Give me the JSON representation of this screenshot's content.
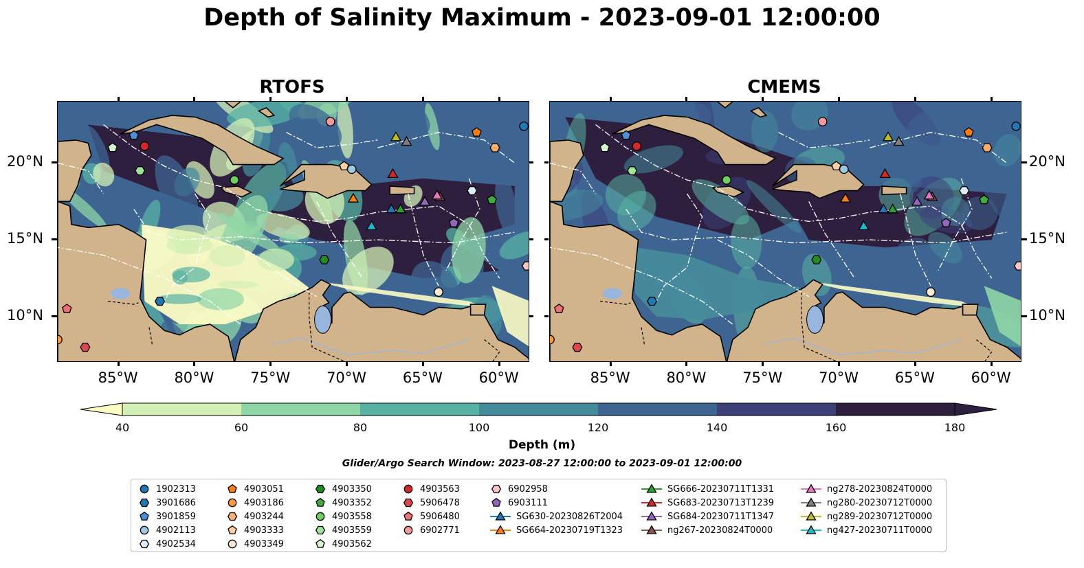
{
  "title": "Depth of Salinity Maximum - 2023-09-01 12:00:00",
  "panels": [
    {
      "title": "RTOFS",
      "scheme": "rtofs"
    },
    {
      "title": "CMEMS",
      "scheme": "cmems"
    }
  ],
  "axes": {
    "x_ticks": [
      "85°W",
      "80°W",
      "75°W",
      "70°W",
      "65°W",
      "60°W"
    ],
    "y_ticks": [
      "20°N",
      "15°N",
      "10°N"
    ],
    "lon_range": [
      -89,
      -58
    ],
    "lat_range": [
      7,
      24
    ]
  },
  "colorbar": {
    "label": "Depth (m)",
    "ticks": [
      "40",
      "60",
      "80",
      "100",
      "120",
      "140",
      "160",
      "180"
    ],
    "colors": [
      "#fbfbc4",
      "#d4f0b5",
      "#8fd6a6",
      "#57b2a3",
      "#468b9c",
      "#3e6592",
      "#3c3f7a",
      "#2e1f3e"
    ],
    "extend": "both"
  },
  "colors": {
    "land": "#d2b48c",
    "lake": "#98b5de",
    "river": "#a0b4d6",
    "ocean_deep": "#2b1b35"
  },
  "search_window": "Glider/Argo Search Window: 2023-08-27 12:00:00 to 2023-09-01 12:00:00",
  "legend": {
    "columns": [
      [
        {
          "label": "1902313",
          "shape": "circle",
          "color": "#1f77b4"
        },
        {
          "label": "3901686",
          "shape": "hexagon",
          "color": "#1f77b4"
        },
        {
          "label": "3901859",
          "shape": "pentagon",
          "color": "#4a90d9"
        },
        {
          "label": "4902113",
          "shape": "circle",
          "color": "#9ecae1"
        },
        {
          "label": "4902534",
          "shape": "hexagon",
          "color": "#deebf7"
        }
      ],
      [
        {
          "label": "4903051",
          "shape": "pentagon",
          "color": "#ff7f0e"
        },
        {
          "label": "4903186",
          "shape": "circle",
          "color": "#fd9a3c"
        },
        {
          "label": "4903244",
          "shape": "hexagon",
          "color": "#fdae6b"
        },
        {
          "label": "4903333",
          "shape": "pentagon",
          "color": "#fdd0a2"
        },
        {
          "label": "4903349",
          "shape": "circle",
          "color": "#feebd2"
        }
      ],
      [
        {
          "label": "4903350",
          "shape": "hexagon",
          "color": "#238b22"
        },
        {
          "label": "4903352",
          "shape": "pentagon",
          "color": "#41ab3c"
        },
        {
          "label": "4903558",
          "shape": "circle",
          "color": "#6fcf5f"
        },
        {
          "label": "4903559",
          "shape": "hexagon",
          "color": "#a1e39a"
        },
        {
          "label": "4903562",
          "shape": "pentagon",
          "color": "#d4f5cf"
        }
      ],
      [
        {
          "label": "4903563",
          "shape": "circle",
          "color": "#d62728"
        },
        {
          "label": "5906478",
          "shape": "hexagon",
          "color": "#e0464b"
        },
        {
          "label": "5906480",
          "shape": "pentagon",
          "color": "#ef6f72"
        },
        {
          "label": "6902771",
          "shape": "circle",
          "color": "#f5999a"
        }
      ],
      [
        {
          "label": "6902958",
          "shape": "hexagon",
          "color": "#fbc4c4"
        },
        {
          "label": "6903111",
          "shape": "pentagon",
          "color": "#9467bd"
        },
        {
          "label": "SG630-20230826T2004",
          "shape": "triangle",
          "color": "#1f77b4"
        },
        {
          "label": "SG664-20230719T1323",
          "shape": "triangle",
          "color": "#ff7f0e"
        }
      ],
      [
        {
          "label": "SG666-20230711T1331",
          "shape": "triangle",
          "color": "#2ca02c"
        },
        {
          "label": "SG683-20230713T1239",
          "shape": "triangle",
          "color": "#d62728"
        },
        {
          "label": "SG684-20230711T1347",
          "shape": "triangle",
          "color": "#9467bd"
        },
        {
          "label": "ng267-20230824T0000",
          "shape": "triangle",
          "color": "#8c564b"
        }
      ],
      [
        {
          "label": "ng278-20230824T0000",
          "shape": "triangle",
          "color": "#e377c2"
        },
        {
          "label": "ng280-20230712T0000",
          "shape": "triangle",
          "color": "#7f7f7f"
        },
        {
          "label": "ng289-20230712T0000",
          "shape": "triangle",
          "color": "#bcbd22"
        },
        {
          "label": "ng427-20230711T0000",
          "shape": "triangle",
          "color": "#17becf"
        }
      ]
    ]
  },
  "observations": [
    {
      "id": "1902313",
      "lon": -58.4,
      "lat": 22.4
    },
    {
      "id": "3901686",
      "lon": -82.3,
      "lat": 11.0
    },
    {
      "id": "3901859",
      "lon": -84.0,
      "lat": 21.8
    },
    {
      "id": "4902113",
      "lon": -69.7,
      "lat": 19.6
    },
    {
      "id": "4902534",
      "lon": -61.8,
      "lat": 18.2
    },
    {
      "id": "4903051",
      "lon": -61.5,
      "lat": 22.0
    },
    {
      "id": "4903186",
      "lon": -89.0,
      "lat": 8.5
    },
    {
      "id": "4903244",
      "lon": -60.3,
      "lat": 21.0
    },
    {
      "id": "4903333",
      "lon": -70.2,
      "lat": 19.8
    },
    {
      "id": "4903349",
      "lon": -64.0,
      "lat": 11.6
    },
    {
      "id": "4903350",
      "lon": -71.5,
      "lat": 13.7
    },
    {
      "id": "4903352",
      "lon": -60.5,
      "lat": 17.6
    },
    {
      "id": "4903558",
      "lon": -77.4,
      "lat": 18.9
    },
    {
      "id": "4903559",
      "lon": -83.6,
      "lat": 19.5
    },
    {
      "id": "4903562",
      "lon": -85.4,
      "lat": 21.0
    },
    {
      "id": "4903563",
      "lon": -83.3,
      "lat": 21.1
    },
    {
      "id": "5906478",
      "lon": -87.2,
      "lat": 8.0
    },
    {
      "id": "5906480",
      "lon": -88.4,
      "lat": 10.5
    },
    {
      "id": "6902771",
      "lon": -71.1,
      "lat": 22.7
    },
    {
      "id": "6902958",
      "lon": -58.2,
      "lat": 13.3
    },
    {
      "id": "6903111",
      "lon": -63.0,
      "lat": 16.1
    },
    {
      "id": "SG630-20230826T2004",
      "lon": -67.1,
      "lat": 17.0
    },
    {
      "id": "SG664-20230719T1323",
      "lon": -69.6,
      "lat": 17.7
    },
    {
      "id": "SG666-20230711T1331",
      "lon": -66.5,
      "lat": 17.0
    },
    {
      "id": "SG683-20230713T1239",
      "lon": -67.0,
      "lat": 19.3
    },
    {
      "id": "SG684-20230711T1347",
      "lon": -64.9,
      "lat": 17.5
    },
    {
      "id": "ng267-20230824T0000",
      "lon": -63.9,
      "lat": 17.8
    },
    {
      "id": "ng278-20230824T0000",
      "lon": -64.1,
      "lat": 17.9
    },
    {
      "id": "ng280-20230712T0000",
      "lon": -66.1,
      "lat": 21.4
    },
    {
      "id": "ng289-20230712T0000",
      "lon": -66.8,
      "lat": 21.7
    },
    {
      "id": "ng427-20230711T0000",
      "lon": -68.4,
      "lat": 15.9
    }
  ]
}
